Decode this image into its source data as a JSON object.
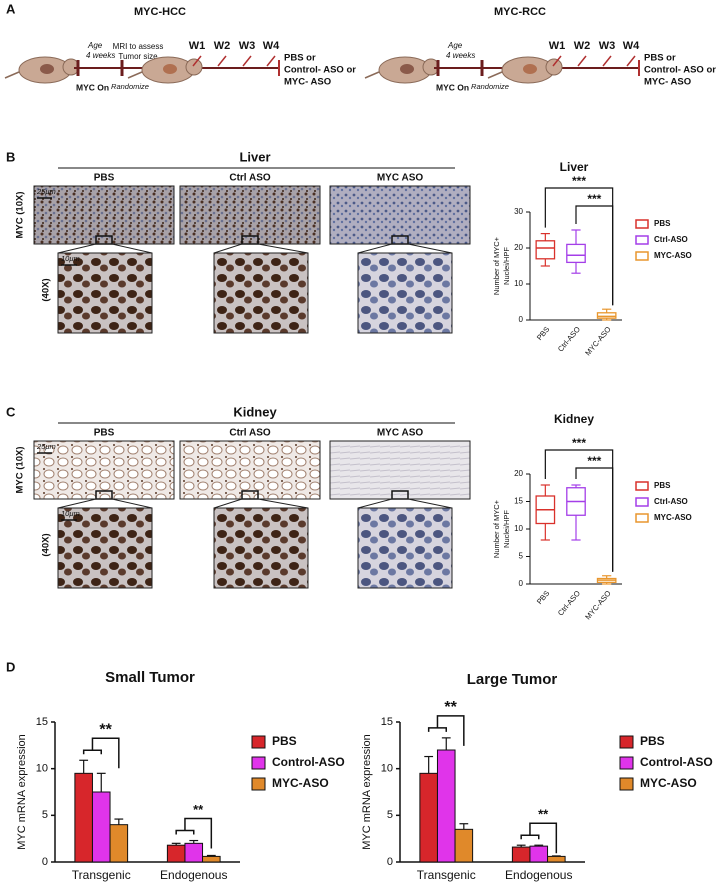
{
  "panels": {
    "a": {
      "label": "A",
      "hcc": {
        "title": "MYC-HCC",
        "age": "Age",
        "age_value": "4 weeks",
        "mri": "MRI to assess",
        "mri2": "Tumor size",
        "weeks": [
          "W1",
          "W2",
          "W3",
          "W4"
        ],
        "on": "MYC On",
        "randomize": "Randomize",
        "treat": [
          "PBS or",
          "Control- ASO or",
          "MYC- ASO"
        ]
      },
      "rcc": {
        "title": "MYC-RCC",
        "age": "Age",
        "age_value": "4 weeks",
        "weeks": [
          "W1",
          "W2",
          "W3",
          "W4"
        ],
        "on": "MYC On",
        "randomize": "Randomize",
        "treat": [
          "PBS or",
          "Control- ASO or",
          "MYC- ASO"
        ]
      }
    },
    "b": {
      "label": "B",
      "tissue": "Liver",
      "columns": [
        "PBS",
        "Ctrl ASO",
        "MYC ASO"
      ],
      "row10": "MYC (10X)",
      "row40": "(40X)",
      "scale10": "25μm",
      "scale40": "10μm"
    },
    "c": {
      "label": "C",
      "tissue": "Kidney",
      "columns": [
        "PBS",
        "Ctrl ASO",
        "MYC ASO"
      ],
      "row10": "MYC (10X)",
      "row40": "(40X)",
      "scale10": "25μm",
      "scale40": "10μm"
    },
    "d": {
      "label": "D"
    }
  },
  "chart_data": [
    {
      "type": "box",
      "title": "Liver",
      "ylabel": [
        "Number of MYC+",
        "Nuclei/HPF"
      ],
      "categories": [
        "PBS",
        "Ctrl-ASO",
        "MYC-ASO"
      ],
      "colors": [
        "#d9312b",
        "#a43ee8",
        "#e8962e"
      ],
      "min": [
        15,
        13,
        0
      ],
      "q1": [
        17,
        16,
        0.5
      ],
      "median": [
        20,
        18,
        1
      ],
      "q3": [
        22,
        21,
        2
      ],
      "max": [
        24,
        25,
        3
      ],
      "ylim": [
        0,
        30
      ],
      "yticks": [
        0,
        10,
        20,
        30
      ],
      "annotations": [
        "***",
        "***"
      ]
    },
    {
      "type": "box",
      "title": "Kidney",
      "ylabel": [
        "Number of MYC+",
        "Nuclei/HPF"
      ],
      "categories": [
        "PBS",
        "Ctrl-ASO",
        "MYC-ASO"
      ],
      "colors": [
        "#d9312b",
        "#a43ee8",
        "#e8962e"
      ],
      "min": [
        8,
        8,
        0
      ],
      "q1": [
        11,
        12.5,
        0.3
      ],
      "median": [
        13.5,
        15,
        0.7
      ],
      "q3": [
        16,
        17.5,
        1
      ],
      "max": [
        18,
        18,
        1.5
      ],
      "ylim": [
        0,
        20
      ],
      "yticks": [
        0,
        5,
        10,
        15,
        20
      ],
      "annotations": [
        "***",
        "***"
      ]
    },
    {
      "type": "bar",
      "title": "Small Tumor",
      "ylabel": "MYC mRNA expression",
      "categories": [
        "Transgenic",
        "Endogenous"
      ],
      "series": [
        {
          "name": "PBS",
          "color": "#d7262b",
          "values": [
            9.5,
            1.8
          ],
          "errors": [
            1.4,
            0.2
          ]
        },
        {
          "name": "Control-ASO",
          "color": "#e034ea",
          "values": [
            7.5,
            2.0
          ],
          "errors": [
            2.0,
            0.3
          ]
        },
        {
          "name": "MYC-ASO",
          "color": "#e0892a",
          "values": [
            4.0,
            0.6
          ],
          "errors": [
            0.6,
            0.1
          ]
        }
      ],
      "ylim": [
        0,
        15
      ],
      "yticks": [
        0,
        5,
        10,
        15
      ],
      "annotations": [
        "**",
        "**"
      ]
    },
    {
      "type": "bar",
      "title": "Large Tumor",
      "ylabel": "MYC mRNA expression",
      "categories": [
        "Transgenic",
        "Endogenous"
      ],
      "series": [
        {
          "name": "PBS",
          "color": "#d7262b",
          "values": [
            9.5,
            1.6
          ],
          "errors": [
            1.8,
            0.2
          ]
        },
        {
          "name": "Control-ASO",
          "color": "#e034ea",
          "values": [
            12.0,
            1.7
          ],
          "errors": [
            1.3,
            0.1
          ]
        },
        {
          "name": "MYC-ASO",
          "color": "#e0892a",
          "values": [
            3.5,
            0.6
          ],
          "errors": [
            0.6,
            0.05
          ]
        }
      ],
      "ylim": [
        0,
        15
      ],
      "yticks": [
        0,
        5,
        10,
        15
      ],
      "annotations": [
        "**",
        "**"
      ]
    }
  ]
}
